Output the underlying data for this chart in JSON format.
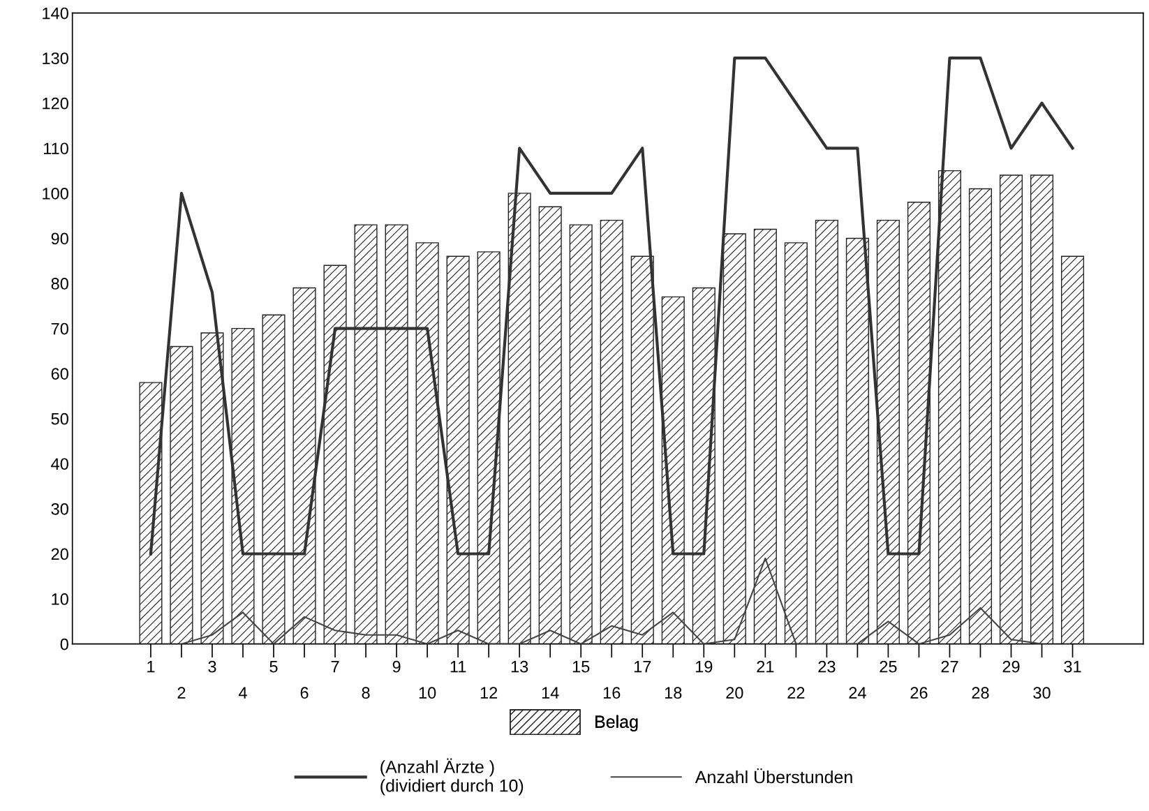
{
  "chart_data": {
    "type": "bar",
    "categories": [
      "1",
      "2",
      "3",
      "4",
      "5",
      "6",
      "7",
      "8",
      "9",
      "10",
      "11",
      "12",
      "13",
      "14",
      "15",
      "16",
      "17",
      "18",
      "19",
      "20",
      "21",
      "22",
      "23",
      "24",
      "25",
      "26",
      "27",
      "28",
      "29",
      "30",
      "31"
    ],
    "series": [
      {
        "name": "Belag",
        "color": "#222222",
        "values": [
          58,
          66,
          69,
          70,
          73,
          79,
          84,
          93,
          93,
          89,
          86,
          87,
          100,
          97,
          93,
          94,
          86,
          77,
          79,
          91,
          92,
          89,
          94,
          90,
          94,
          98,
          105,
          101,
          104,
          104,
          86
        ]
      },
      {
        "name": "(Anzahl Ärzte )\n(dividiert durch 10)",
        "type": "line",
        "color": "#333333",
        "values": [
          20,
          100,
          78,
          20,
          20,
          20,
          70,
          70,
          70,
          70,
          20,
          20,
          110,
          100,
          100,
          100,
          110,
          20,
          20,
          130,
          130,
          120,
          110,
          110,
          20,
          20,
          130,
          130,
          110,
          120,
          110
        ]
      },
      {
        "name": "Anzahl Überstunden",
        "type": "line",
        "color": "#444444",
        "values": [
          null,
          0,
          2,
          7,
          0,
          6,
          3,
          2,
          2,
          0,
          3,
          0,
          0,
          3,
          0,
          4,
          2,
          7,
          0,
          1,
          19,
          0,
          0,
          0,
          5,
          0,
          2,
          8,
          1,
          0,
          null
        ]
      }
    ],
    "ylim": [
      0,
      140
    ],
    "yticks": [
      0,
      10,
      20,
      30,
      40,
      50,
      60,
      70,
      80,
      90,
      100,
      110,
      120,
      130,
      140
    ],
    "grid": false,
    "legend": "bottom",
    "marker": "none",
    "line_style": "solid"
  }
}
